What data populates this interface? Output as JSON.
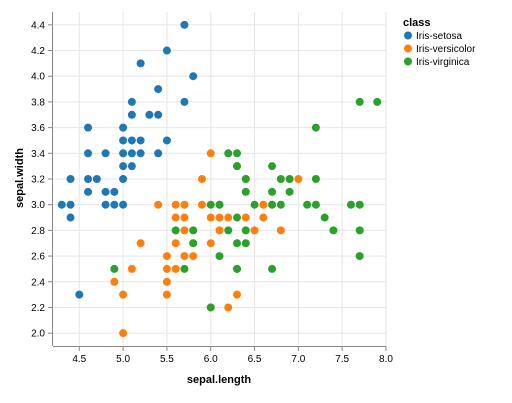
{
  "chart_data": {
    "type": "scatter",
    "xlabel": "sepal.length",
    "ylabel": "sepal.width",
    "xlim": [
      4.2,
      8.0
    ],
    "ylim": [
      1.9,
      4.5
    ],
    "x_ticks": [
      "4.5",
      "5.0",
      "5.5",
      "6.0",
      "6.5",
      "7.0",
      "7.5",
      "8.0"
    ],
    "y_ticks": [
      "2.0",
      "2.2",
      "2.4",
      "2.6",
      "2.8",
      "3.0",
      "3.2",
      "3.4",
      "3.6",
      "3.8",
      "4.0",
      "4.2",
      "4.4"
    ],
    "grid": true,
    "legend": {
      "title": "class",
      "placement": "top-right"
    },
    "series": [
      {
        "name": "Iris-setosa",
        "color": "#1f77b4",
        "points": [
          [
            4.3,
            3.0
          ],
          [
            4.4,
            2.9
          ],
          [
            4.4,
            3.0
          ],
          [
            4.4,
            3.2
          ],
          [
            4.5,
            2.3
          ],
          [
            4.6,
            3.1
          ],
          [
            4.6,
            3.2
          ],
          [
            4.6,
            3.4
          ],
          [
            4.6,
            3.6
          ],
          [
            4.7,
            3.2
          ],
          [
            4.8,
            3.0
          ],
          [
            4.8,
            3.1
          ],
          [
            4.8,
            3.4
          ],
          [
            4.9,
            3.0
          ],
          [
            4.9,
            3.1
          ],
          [
            5.0,
            3.0
          ],
          [
            5.0,
            3.2
          ],
          [
            5.0,
            3.3
          ],
          [
            5.0,
            3.4
          ],
          [
            5.0,
            3.5
          ],
          [
            5.0,
            3.6
          ],
          [
            5.1,
            3.3
          ],
          [
            5.1,
            3.4
          ],
          [
            5.1,
            3.5
          ],
          [
            5.1,
            3.7
          ],
          [
            5.1,
            3.8
          ],
          [
            5.2,
            3.4
          ],
          [
            5.2,
            3.5
          ],
          [
            5.2,
            4.1
          ],
          [
            5.3,
            3.7
          ],
          [
            5.4,
            3.4
          ],
          [
            5.4,
            3.7
          ],
          [
            5.4,
            3.9
          ],
          [
            5.5,
            3.5
          ],
          [
            5.5,
            4.2
          ],
          [
            5.7,
            3.8
          ],
          [
            5.7,
            4.4
          ],
          [
            5.8,
            4.0
          ]
        ]
      },
      {
        "name": "Iris-versicolor",
        "color": "#ff7f0e",
        "points": [
          [
            4.9,
            2.4
          ],
          [
            5.0,
            2.0
          ],
          [
            5.0,
            2.3
          ],
          [
            5.1,
            2.5
          ],
          [
            5.2,
            2.7
          ],
          [
            5.4,
            3.0
          ],
          [
            5.5,
            2.3
          ],
          [
            5.5,
            2.4
          ],
          [
            5.5,
            2.5
          ],
          [
            5.5,
            2.6
          ],
          [
            5.6,
            2.5
          ],
          [
            5.6,
            2.7
          ],
          [
            5.6,
            2.9
          ],
          [
            5.6,
            3.0
          ],
          [
            5.7,
            2.6
          ],
          [
            5.7,
            2.8
          ],
          [
            5.7,
            2.9
          ],
          [
            5.7,
            3.0
          ],
          [
            5.8,
            2.6
          ],
          [
            5.8,
            2.7
          ],
          [
            5.9,
            3.0
          ],
          [
            5.9,
            3.2
          ],
          [
            6.0,
            2.2
          ],
          [
            6.0,
            2.7
          ],
          [
            6.0,
            2.9
          ],
          [
            6.0,
            3.4
          ],
          [
            6.1,
            2.8
          ],
          [
            6.1,
            2.9
          ],
          [
            6.1,
            3.0
          ],
          [
            6.2,
            2.2
          ],
          [
            6.2,
            2.9
          ],
          [
            6.3,
            2.3
          ],
          [
            6.3,
            2.5
          ],
          [
            6.3,
            3.3
          ],
          [
            6.4,
            2.9
          ],
          [
            6.4,
            3.2
          ],
          [
            6.5,
            2.8
          ],
          [
            6.6,
            2.9
          ],
          [
            6.6,
            3.0
          ],
          [
            6.7,
            3.0
          ],
          [
            6.8,
            2.8
          ],
          [
            7.0,
            3.2
          ]
        ]
      },
      {
        "name": "Iris-virginica",
        "color": "#2ca02c",
        "points": [
          [
            4.9,
            2.5
          ],
          [
            5.6,
            2.8
          ],
          [
            5.7,
            2.5
          ],
          [
            5.8,
            2.7
          ],
          [
            5.8,
            2.8
          ],
          [
            6.0,
            2.2
          ],
          [
            6.0,
            3.0
          ],
          [
            6.1,
            2.6
          ],
          [
            6.1,
            3.0
          ],
          [
            6.2,
            2.8
          ],
          [
            6.2,
            3.4
          ],
          [
            6.3,
            2.5
          ],
          [
            6.3,
            2.7
          ],
          [
            6.3,
            2.9
          ],
          [
            6.3,
            3.3
          ],
          [
            6.3,
            3.4
          ],
          [
            6.4,
            2.7
          ],
          [
            6.4,
            2.8
          ],
          [
            6.4,
            3.1
          ],
          [
            6.4,
            3.2
          ],
          [
            6.5,
            3.0
          ],
          [
            6.7,
            2.5
          ],
          [
            6.7,
            3.0
          ],
          [
            6.7,
            3.1
          ],
          [
            6.7,
            3.3
          ],
          [
            6.8,
            3.0
          ],
          [
            6.8,
            3.2
          ],
          [
            6.9,
            3.1
          ],
          [
            6.9,
            3.2
          ],
          [
            7.1,
            3.0
          ],
          [
            7.2,
            3.0
          ],
          [
            7.2,
            3.2
          ],
          [
            7.2,
            3.6
          ],
          [
            7.3,
            2.9
          ],
          [
            7.4,
            2.8
          ],
          [
            7.6,
            3.0
          ],
          [
            7.7,
            2.6
          ],
          [
            7.7,
            2.8
          ],
          [
            7.7,
            3.0
          ],
          [
            7.7,
            3.8
          ],
          [
            7.9,
            3.8
          ]
        ]
      }
    ]
  }
}
